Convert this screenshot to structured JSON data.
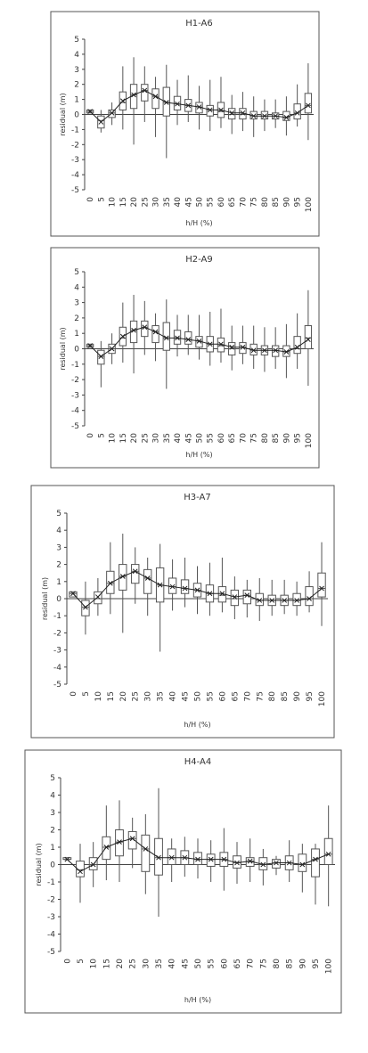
{
  "chart_data": [
    {
      "type": "box",
      "title": "H1-A6",
      "x_label": "h/H (%)",
      "y_label": "residual (m)",
      "categories": [
        "0",
        "5",
        "10",
        "15",
        "20",
        "25",
        "30",
        "35",
        "40",
        "45",
        "50",
        "55",
        "60",
        "65",
        "70",
        "75",
        "80",
        "85",
        "90",
        "95",
        "100"
      ],
      "ylim": [
        -5,
        5
      ],
      "yticks": [
        -5,
        -4,
        -3,
        -2,
        -1,
        0,
        1,
        2,
        3,
        4,
        5
      ],
      "min": [
        0.1,
        -1.2,
        -0.7,
        -1.0,
        -2.0,
        -0.5,
        -1.5,
        -2.9,
        -0.7,
        -0.5,
        -1.0,
        -1.1,
        -0.9,
        -1.3,
        -1.1,
        -1.5,
        -1.1,
        -0.9,
        -1.4,
        -0.8,
        -1.7
      ],
      "q1": [
        0.1,
        -0.9,
        -0.2,
        0.3,
        0.4,
        0.9,
        0.4,
        -0.1,
        0.3,
        0.2,
        0.1,
        -0.1,
        -0.2,
        -0.3,
        -0.3,
        -0.3,
        -0.3,
        -0.3,
        -0.4,
        -0.3,
        0.1
      ],
      "median": [
        0.2,
        -0.4,
        0.1,
        0.8,
        1.3,
        1.6,
        1.2,
        0.8,
        0.7,
        0.6,
        0.5,
        0.3,
        0.2,
        0.0,
        0.0,
        -0.1,
        -0.1,
        -0.1,
        -0.2,
        0.1,
        0.6
      ],
      "q3": [
        0.3,
        -0.1,
        0.3,
        1.5,
        2.0,
        2.0,
        1.7,
        1.8,
        1.2,
        1.0,
        0.8,
        0.6,
        0.8,
        0.4,
        0.4,
        0.2,
        0.2,
        0.1,
        0.2,
        0.7,
        1.4
      ],
      "max": [
        0.3,
        0.3,
        0.8,
        3.2,
        3.8,
        3.2,
        2.5,
        3.3,
        2.3,
        2.6,
        1.9,
        2.3,
        2.5,
        1.3,
        1.5,
        1.2,
        1.0,
        1.0,
        1.2,
        2.0,
        3.4
      ],
      "mean": [
        0.2,
        -0.5,
        0.1,
        0.9,
        1.3,
        1.6,
        1.2,
        0.8,
        0.7,
        0.6,
        0.5,
        0.3,
        0.3,
        0.1,
        0.1,
        -0.1,
        -0.1,
        -0.1,
        -0.2,
        0.1,
        0.6
      ]
    },
    {
      "type": "box",
      "title": "H2-A9",
      "x_label": "h/H (%)",
      "y_label": "residual (m)",
      "categories": [
        "0",
        "5",
        "10",
        "15",
        "20",
        "25",
        "30",
        "35",
        "40",
        "45",
        "50",
        "55",
        "60",
        "65",
        "70",
        "75",
        "80",
        "85",
        "90",
        "95",
        "100"
      ],
      "ylim": [
        -5,
        5
      ],
      "yticks": [
        -5,
        -4,
        -3,
        -2,
        -1,
        0,
        1,
        2,
        3,
        4,
        5
      ],
      "min": [
        0.1,
        -2.5,
        -1.0,
        -0.9,
        -1.6,
        -0.4,
        -0.8,
        -2.6,
        -0.5,
        -0.4,
        -0.7,
        -1.1,
        -0.9,
        -1.4,
        -1.0,
        -1.3,
        -1.5,
        -1.3,
        -1.9,
        -1.3,
        -2.4
      ],
      "q1": [
        0.1,
        -1.0,
        -0.3,
        0.2,
        0.4,
        0.8,
        0.4,
        -0.1,
        0.3,
        0.3,
        0.1,
        -0.2,
        -0.2,
        -0.4,
        -0.3,
        -0.4,
        -0.4,
        -0.5,
        -0.5,
        -0.3,
        0.0
      ],
      "median": [
        0.2,
        -0.5,
        0.0,
        0.7,
        1.2,
        1.4,
        1.1,
        0.7,
        0.7,
        0.6,
        0.5,
        0.3,
        0.2,
        0.0,
        0.1,
        -0.1,
        -0.1,
        -0.1,
        -0.2,
        0.0,
        0.7
      ],
      "q3": [
        0.3,
        -0.1,
        0.3,
        1.4,
        1.8,
        1.8,
        1.5,
        1.7,
        1.2,
        1.1,
        0.8,
        0.8,
        0.7,
        0.4,
        0.4,
        0.3,
        0.2,
        0.2,
        0.2,
        0.8,
        1.5
      ],
      "max": [
        0.3,
        0.5,
        1.0,
        3.0,
        3.5,
        3.1,
        2.3,
        3.2,
        2.2,
        2.2,
        2.2,
        2.4,
        2.6,
        1.5,
        1.5,
        1.5,
        1.4,
        1.4,
        1.6,
        2.3,
        3.8
      ],
      "mean": [
        0.2,
        -0.5,
        0.0,
        0.8,
        1.2,
        1.4,
        1.1,
        0.7,
        0.7,
        0.6,
        0.5,
        0.3,
        0.3,
        0.1,
        0.1,
        -0.1,
        -0.1,
        -0.1,
        -0.2,
        0.1,
        0.6
      ]
    },
    {
      "type": "box",
      "title": "H3-A7",
      "x_label": "h/H (%)",
      "y_label": "residual (m)",
      "categories": [
        "0",
        "5",
        "10",
        "15",
        "20",
        "25",
        "30",
        "35",
        "40",
        "45",
        "50",
        "55",
        "60",
        "65",
        "70",
        "75",
        "80",
        "85",
        "90",
        "95",
        "100"
      ],
      "ylim": [
        -5,
        5
      ],
      "yticks": [
        -5,
        -4,
        -3,
        -2,
        -1,
        0,
        1,
        2,
        3,
        4,
        5
      ],
      "min": [
        0.1,
        -2.1,
        -1.0,
        -0.9,
        -2.0,
        -0.3,
        -1.0,
        -3.1,
        -0.7,
        -0.5,
        -0.9,
        -1.0,
        -0.8,
        -1.2,
        -1.1,
        -1.3,
        -1.0,
        -0.9,
        -1.0,
        -0.8,
        -1.6
      ],
      "q1": [
        0.1,
        -1.0,
        -0.3,
        0.3,
        0.5,
        0.9,
        0.3,
        -0.2,
        0.3,
        0.3,
        0.1,
        -0.2,
        -0.2,
        -0.4,
        -0.3,
        -0.4,
        -0.4,
        -0.4,
        -0.4,
        -0.4,
        0.1
      ],
      "median": [
        0.3,
        -0.5,
        0.0,
        0.9,
        1.3,
        1.6,
        1.2,
        0.8,
        0.7,
        0.6,
        0.5,
        0.3,
        0.2,
        0.0,
        0.2,
        -0.1,
        -0.1,
        -0.1,
        -0.1,
        0.0,
        0.6
      ],
      "q3": [
        0.4,
        -0.1,
        0.4,
        1.6,
        2.0,
        2.0,
        1.7,
        1.8,
        1.2,
        1.1,
        0.9,
        0.8,
        0.7,
        0.5,
        0.5,
        0.3,
        0.2,
        0.2,
        0.3,
        0.7,
        1.5
      ],
      "max": [
        0.4,
        1.0,
        1.2,
        3.3,
        3.8,
        3.0,
        2.4,
        3.2,
        2.3,
        2.4,
        1.9,
        2.1,
        2.4,
        1.3,
        1.1,
        1.2,
        1.1,
        1.1,
        1.0,
        1.6,
        3.3
      ],
      "mean": [
        0.3,
        -0.5,
        0.1,
        0.9,
        1.3,
        1.6,
        1.2,
        0.8,
        0.7,
        0.6,
        0.5,
        0.3,
        0.3,
        0.1,
        0.2,
        -0.1,
        -0.1,
        -0.1,
        -0.1,
        0.0,
        0.6
      ]
    },
    {
      "type": "box",
      "title": "H4-A4",
      "x_label": "h/H (%)",
      "y_label": "residual (m)",
      "categories": [
        "0",
        "5",
        "10",
        "15",
        "20",
        "25",
        "30",
        "35",
        "40",
        "45",
        "50",
        "55",
        "60",
        "65",
        "70",
        "75",
        "80",
        "85",
        "90",
        "95",
        "100"
      ],
      "ylim": [
        -5,
        5
      ],
      "yticks": [
        -5,
        -4,
        -3,
        -2,
        -1,
        0,
        1,
        2,
        3,
        4,
        5
      ],
      "min": [
        0.3,
        -2.2,
        -1.3,
        -0.9,
        -1.0,
        -0.2,
        -1.7,
        -3.0,
        -1.0,
        -0.7,
        -0.8,
        -1.0,
        -1.5,
        -1.1,
        -1.0,
        -1.2,
        -0.6,
        -1.0,
        -1.6,
        -2.3,
        -2.4
      ],
      "q1": [
        0.3,
        -0.7,
        -0.3,
        0.3,
        0.5,
        0.9,
        -0.4,
        -0.6,
        0.0,
        0.0,
        0.0,
        -0.1,
        -0.1,
        -0.2,
        -0.1,
        -0.3,
        -0.2,
        -0.3,
        -0.4,
        -0.7,
        0.0
      ],
      "median": [
        0.3,
        -0.3,
        0.0,
        1.0,
        1.3,
        1.5,
        0.9,
        0.4,
        0.4,
        0.4,
        0.3,
        0.3,
        0.3,
        0.1,
        0.2,
        0.0,
        0.1,
        0.1,
        0.0,
        0.3,
        0.6
      ],
      "q3": [
        0.4,
        0.2,
        0.4,
        1.6,
        2.0,
        1.9,
        1.7,
        1.5,
        0.9,
        0.8,
        0.7,
        0.6,
        0.7,
        0.5,
        0.4,
        0.4,
        0.3,
        0.5,
        0.6,
        0.9,
        1.5
      ],
      "max": [
        0.4,
        1.2,
        1.3,
        3.4,
        3.7,
        2.7,
        2.9,
        4.4,
        1.5,
        1.6,
        1.5,
        1.4,
        2.1,
        1.3,
        1.5,
        0.9,
        0.5,
        1.4,
        1.2,
        1.2,
        3.4
      ],
      "mean": [
        0.3,
        -0.4,
        0.0,
        1.0,
        1.3,
        1.5,
        0.9,
        0.4,
        0.4,
        0.4,
        0.3,
        0.3,
        0.3,
        0.1,
        0.2,
        0.0,
        0.1,
        0.1,
        0.0,
        0.3,
        0.6
      ]
    }
  ]
}
